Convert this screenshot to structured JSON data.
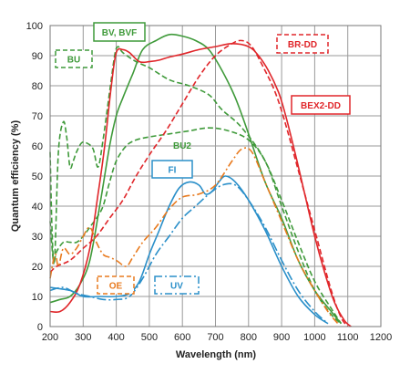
{
  "chart_data": {
    "type": "line",
    "xlabel": "Wavelength (nm)",
    "ylabel": "Quantum efficiency (%)",
    "xlim": [
      200,
      1200
    ],
    "ylim": [
      0,
      100
    ],
    "x_ticks": [
      "200",
      "300",
      "400",
      "500",
      "600",
      "700",
      "800",
      "900",
      "1000",
      "1100",
      "1200"
    ],
    "y_ticks": [
      "0",
      "10",
      "20",
      "30",
      "40",
      "50",
      "60",
      "70",
      "80",
      "90",
      "100"
    ],
    "grid": true,
    "series": [
      {
        "name": "BV, BVF",
        "color": "#3f9a3a",
        "dash": "solid",
        "points": [
          [
            200,
            8
          ],
          [
            230,
            9
          ],
          [
            260,
            10
          ],
          [
            290,
            14
          ],
          [
            320,
            22
          ],
          [
            350,
            40
          ],
          [
            380,
            60
          ],
          [
            400,
            70
          ],
          [
            420,
            76
          ],
          [
            450,
            84
          ],
          [
            480,
            92
          ],
          [
            520,
            95
          ],
          [
            560,
            97
          ],
          [
            600,
            96.5
          ],
          [
            640,
            95
          ],
          [
            680,
            92
          ],
          [
            720,
            85
          ],
          [
            760,
            76
          ],
          [
            800,
            64
          ],
          [
            850,
            48
          ],
          [
            900,
            36
          ],
          [
            950,
            22
          ],
          [
            1000,
            12
          ],
          [
            1050,
            5
          ],
          [
            1080,
            1
          ]
        ]
      },
      {
        "name": "BU",
        "color": "#3f9a3a",
        "dash": "6,3",
        "points": [
          [
            200,
            58
          ],
          [
            205,
            35
          ],
          [
            210,
            22
          ],
          [
            215,
            25
          ],
          [
            225,
            58
          ],
          [
            240,
            68
          ],
          [
            250,
            63
          ],
          [
            260,
            53
          ],
          [
            270,
            55
          ],
          [
            280,
            58
          ],
          [
            295,
            61
          ],
          [
            310,
            61
          ],
          [
            330,
            59
          ],
          [
            345,
            53
          ],
          [
            360,
            62
          ],
          [
            380,
            78
          ],
          [
            395,
            90
          ],
          [
            405,
            93
          ],
          [
            420,
            91
          ],
          [
            460,
            88
          ],
          [
            500,
            86
          ],
          [
            560,
            82
          ],
          [
            620,
            80
          ],
          [
            680,
            77
          ],
          [
            720,
            72
          ],
          [
            780,
            66
          ],
          [
            850,
            55
          ],
          [
            900,
            40
          ],
          [
            950,
            25
          ],
          [
            1000,
            12
          ],
          [
            1050,
            4
          ],
          [
            1080,
            1
          ]
        ]
      },
      {
        "name": "BU2",
        "color": "#3f9a3a",
        "dash": "6,3",
        "points": [
          [
            200,
            35
          ],
          [
            210,
            22
          ],
          [
            220,
            25
          ],
          [
            240,
            28
          ],
          [
            260,
            28
          ],
          [
            280,
            28
          ],
          [
            300,
            30
          ],
          [
            320,
            33
          ],
          [
            340,
            36
          ],
          [
            360,
            40
          ],
          [
            380,
            48
          ],
          [
            400,
            55
          ],
          [
            430,
            60
          ],
          [
            460,
            62
          ],
          [
            500,
            63
          ],
          [
            560,
            64
          ],
          [
            620,
            65
          ],
          [
            680,
            66
          ],
          [
            740,
            65
          ],
          [
            800,
            62
          ],
          [
            850,
            55
          ],
          [
            900,
            42
          ],
          [
            950,
            28
          ],
          [
            1000,
            15
          ],
          [
            1050,
            6
          ],
          [
            1080,
            1
          ]
        ]
      },
      {
        "name": "BR-DD",
        "color": "#e0262a",
        "dash": "6,3",
        "points": [
          [
            200,
            18
          ],
          [
            220,
            20
          ],
          [
            260,
            22
          ],
          [
            300,
            26
          ],
          [
            340,
            30
          ],
          [
            380,
            36
          ],
          [
            420,
            42
          ],
          [
            460,
            50
          ],
          [
            500,
            57
          ],
          [
            550,
            65
          ],
          [
            600,
            74
          ],
          [
            650,
            83
          ],
          [
            700,
            90
          ],
          [
            750,
            94
          ],
          [
            780,
            95
          ],
          [
            810,
            93
          ],
          [
            850,
            85
          ],
          [
            880,
            78
          ],
          [
            910,
            68
          ],
          [
            950,
            52
          ],
          [
            1000,
            32
          ],
          [
            1050,
            12
          ],
          [
            1080,
            3
          ],
          [
            1100,
            0
          ]
        ]
      },
      {
        "name": "BEX2-DD",
        "color": "#e0262a",
        "dash": "solid",
        "points": [
          [
            200,
            5
          ],
          [
            230,
            5
          ],
          [
            260,
            8
          ],
          [
            290,
            14
          ],
          [
            320,
            26
          ],
          [
            345,
            44
          ],
          [
            365,
            60
          ],
          [
            385,
            80
          ],
          [
            400,
            91
          ],
          [
            420,
            92
          ],
          [
            440,
            91
          ],
          [
            470,
            88
          ],
          [
            500,
            88
          ],
          [
            530,
            88.5
          ],
          [
            560,
            89.5
          ],
          [
            600,
            90.5
          ],
          [
            650,
            92
          ],
          [
            700,
            93
          ],
          [
            750,
            94
          ],
          [
            800,
            93
          ],
          [
            830,
            90
          ],
          [
            860,
            85
          ],
          [
            890,
            78
          ],
          [
            910,
            71
          ],
          [
            940,
            58
          ],
          [
            970,
            44
          ],
          [
            1000,
            30
          ],
          [
            1030,
            18
          ],
          [
            1060,
            8
          ],
          [
            1090,
            2
          ],
          [
            1110,
            0
          ]
        ]
      },
      {
        "name": "FI",
        "color": "#2a8fc9",
        "dash": "solid",
        "points": [
          [
            200,
            13
          ],
          [
            260,
            12
          ],
          [
            300,
            10
          ],
          [
            350,
            10
          ],
          [
            400,
            10
          ],
          [
            440,
            11
          ],
          [
            470,
            15
          ],
          [
            500,
            24
          ],
          [
            530,
            32
          ],
          [
            560,
            40
          ],
          [
            590,
            46
          ],
          [
            620,
            48
          ],
          [
            650,
            47
          ],
          [
            670,
            44
          ],
          [
            690,
            45
          ],
          [
            710,
            48
          ],
          [
            730,
            50
          ],
          [
            760,
            48
          ],
          [
            800,
            42
          ],
          [
            850,
            32
          ],
          [
            900,
            20
          ],
          [
            950,
            10
          ],
          [
            1000,
            4
          ],
          [
            1040,
            1
          ]
        ]
      },
      {
        "name": "UV",
        "color": "#2a8fc9",
        "dash": "10,3,2,3",
        "points": [
          [
            200,
            12
          ],
          [
            240,
            13
          ],
          [
            280,
            11
          ],
          [
            320,
            10
          ],
          [
            360,
            9
          ],
          [
            400,
            9
          ],
          [
            440,
            10
          ],
          [
            480,
            16
          ],
          [
            520,
            24
          ],
          [
            560,
            30
          ],
          [
            600,
            36
          ],
          [
            640,
            40
          ],
          [
            680,
            44
          ],
          [
            720,
            47
          ],
          [
            760,
            47
          ],
          [
            800,
            42
          ],
          [
            850,
            33
          ],
          [
            900,
            22
          ],
          [
            950,
            12
          ],
          [
            1000,
            5
          ],
          [
            1040,
            1
          ]
        ]
      },
      {
        "name": "OE",
        "color": "#e87a1e",
        "dash": "8,3,2,3",
        "points": [
          [
            200,
            16
          ],
          [
            215,
            24
          ],
          [
            225,
            20
          ],
          [
            240,
            26
          ],
          [
            260,
            24
          ],
          [
            280,
            26
          ],
          [
            300,
            30
          ],
          [
            320,
            33
          ],
          [
            340,
            28
          ],
          [
            360,
            24
          ],
          [
            380,
            23
          ],
          [
            400,
            22
          ],
          [
            430,
            20
          ],
          [
            450,
            23
          ],
          [
            480,
            28
          ],
          [
            520,
            33
          ],
          [
            560,
            39
          ],
          [
            600,
            43
          ],
          [
            650,
            44
          ],
          [
            700,
            47
          ],
          [
            750,
            55
          ],
          [
            780,
            59
          ],
          [
            810,
            58
          ],
          [
            850,
            48
          ],
          [
            900,
            35
          ],
          [
            950,
            22
          ],
          [
            1000,
            12
          ],
          [
            1040,
            5
          ],
          [
            1070,
            1
          ]
        ]
      }
    ],
    "annotations": [
      {
        "text": "BV, BVF",
        "color": "#3f9a3a",
        "border": "solid"
      },
      {
        "text": "BU",
        "color": "#3f9a3a",
        "border": "dashed"
      },
      {
        "text": "BR-DD",
        "color": "#e0262a",
        "border": "dashed"
      },
      {
        "text": "BEX2-DD",
        "color": "#e0262a",
        "border": "solid"
      },
      {
        "text": "BU2",
        "color": "#3f9a3a",
        "border": "none"
      },
      {
        "text": "FI",
        "color": "#2a8fc9",
        "border": "solid"
      },
      {
        "text": "OE",
        "color": "#e87a1e",
        "border": "dashed"
      },
      {
        "text": "UV",
        "color": "#2a8fc9",
        "border": "dashdot"
      }
    ]
  }
}
